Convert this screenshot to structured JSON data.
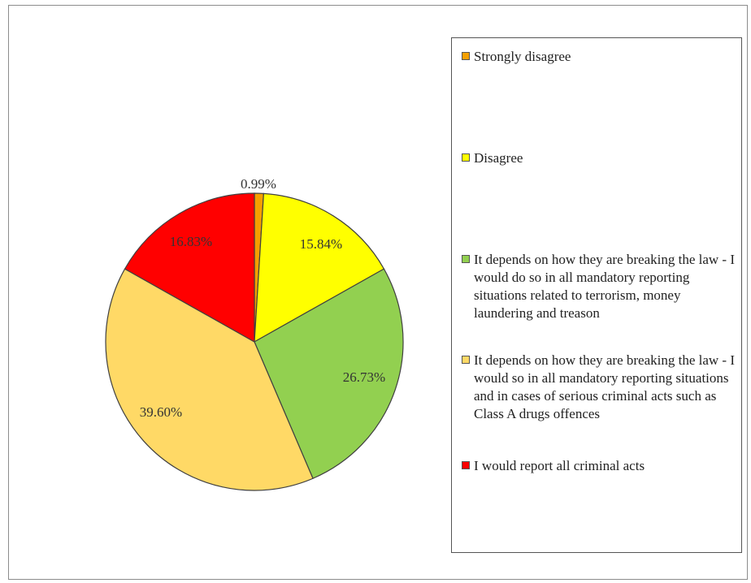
{
  "chart_data": {
    "type": "pie",
    "slices": [
      {
        "label": "Strongly disagree",
        "value": 0.99,
        "display": "0.99%",
        "color": "#F5A000"
      },
      {
        "label": "Disagree",
        "value": 15.84,
        "display": "15.84%",
        "color": "#FFFF00"
      },
      {
        "label": "It depends on how they are breaking the law - I would do so in all mandatory reporting situations related to terrorism, money laundering and treason",
        "value": 26.73,
        "display": "26.73%",
        "color": "#92D050"
      },
      {
        "label": "It depends on how they are breaking the law - I would so in all mandatory reporting situations and in cases of serious criminal acts such as Class A drugs offences",
        "value": 39.6,
        "display": "39.60%",
        "color": "#FFD966"
      },
      {
        "label": "I would report all criminal acts",
        "value": 16.83,
        "display": "16.83%",
        "color": "#FF0000"
      }
    ],
    "legend_position": "right"
  }
}
